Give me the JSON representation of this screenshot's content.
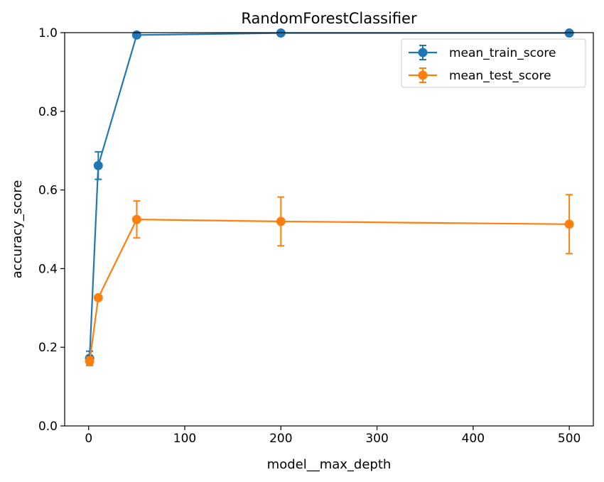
{
  "chart_data": {
    "type": "line",
    "title": "RandomForestClassifier",
    "xlabel": "model__max_depth",
    "ylabel": "accuracy_score",
    "xlim": [
      -24.95,
      525.05
    ],
    "ylim": [
      0.0,
      1.0
    ],
    "x_ticks": [
      0,
      100,
      200,
      300,
      400,
      500
    ],
    "y_ticks": [
      0.0,
      0.2,
      0.4,
      0.6,
      0.8,
      1.0
    ],
    "x_tick_labels": [
      "0",
      "100",
      "200",
      "300",
      "400",
      "500"
    ],
    "y_tick_labels": [
      "0.0",
      "0.2",
      "0.4",
      "0.6",
      "0.8",
      "1.0"
    ],
    "grid": false,
    "legend_position": "top-right",
    "x": [
      1,
      10,
      50,
      200,
      500
    ],
    "series": [
      {
        "name": "mean_train_score",
        "color": "#1f77b4",
        "values": [
          0.172,
          0.662,
          0.994,
          0.999,
          0.999
        ],
        "errors": [
          0.018,
          0.035,
          0.002,
          0.001,
          0.001
        ]
      },
      {
        "name": "mean_test_score",
        "color": "#ff7f0e",
        "values": [
          0.165,
          0.326,
          0.525,
          0.52,
          0.513
        ],
        "errors": [
          0.01,
          0.005,
          0.047,
          0.062,
          0.075
        ]
      }
    ]
  }
}
